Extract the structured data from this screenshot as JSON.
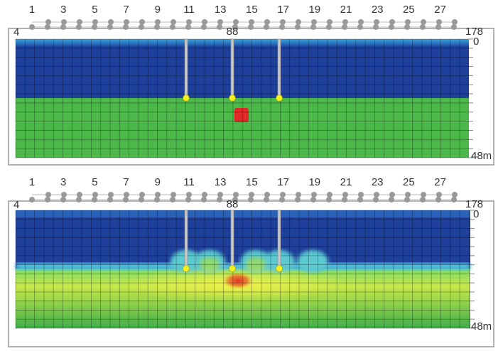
{
  "panels": [
    {
      "electrodes": [
        "1",
        "3",
        "5",
        "7",
        "9",
        "11",
        "13",
        "15",
        "17",
        "19",
        "21",
        "23",
        "25",
        "27"
      ],
      "left_label": "4",
      "center_label": "88",
      "right_label": "178",
      "depth_top": "0",
      "depth_bottom": "48m"
    },
    {
      "electrodes": [
        "1",
        "3",
        "5",
        "7",
        "9",
        "11",
        "13",
        "15",
        "17",
        "19",
        "21",
        "23",
        "25",
        "27"
      ],
      "left_label": "4",
      "center_label": "88",
      "right_label": "178",
      "depth_top": "0",
      "depth_bottom": "48m"
    }
  ]
}
